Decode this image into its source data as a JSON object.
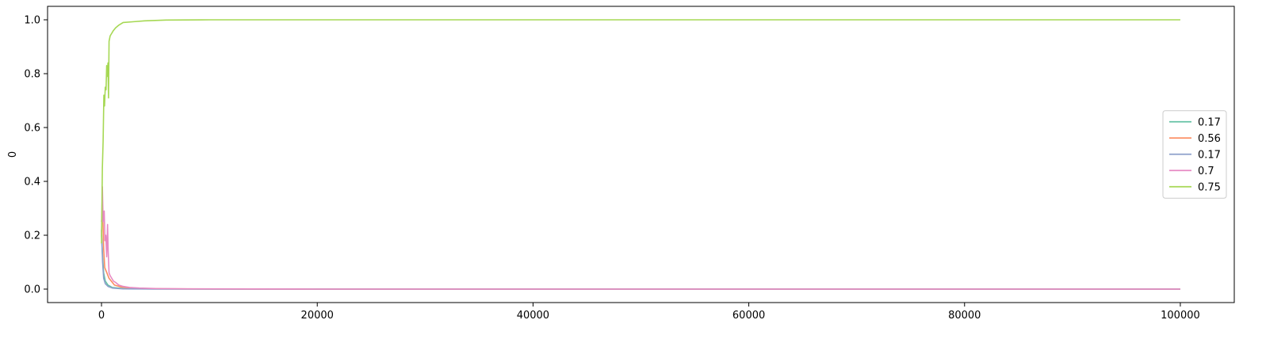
{
  "chart_data": {
    "type": "line",
    "title": "",
    "xlabel": "",
    "ylabel": "0",
    "xlim": [
      -5000,
      105000
    ],
    "ylim": [
      -0.05,
      1.05
    ],
    "x_ticks": [
      0,
      20000,
      40000,
      60000,
      80000,
      100000
    ],
    "x_tick_labels": [
      "0",
      "20000",
      "40000",
      "60000",
      "80000",
      "100000"
    ],
    "y_ticks": [
      0.0,
      0.2,
      0.4,
      0.6,
      0.8,
      1.0
    ],
    "y_tick_labels": [
      "0.0",
      "0.2",
      "0.4",
      "0.6",
      "0.8",
      "1.0"
    ],
    "grid": false,
    "legend_position": "center-right",
    "series": [
      {
        "name": "0.17",
        "color": "#66c2a5",
        "points": [
          [
            0,
            0.2
          ],
          [
            100,
            0.12
          ],
          [
            200,
            0.06
          ],
          [
            350,
            0.03
          ],
          [
            600,
            0.015
          ],
          [
            1000,
            0.006
          ],
          [
            2000,
            0.002
          ],
          [
            4000,
            0.001
          ],
          [
            10000,
            0.0
          ],
          [
            100000,
            0.0
          ]
        ]
      },
      {
        "name": "0.56",
        "color": "#fc8d62",
        "points": [
          [
            0,
            0.25
          ],
          [
            100,
            0.3
          ],
          [
            200,
            0.15
          ],
          [
            300,
            0.08
          ],
          [
            500,
            0.06
          ],
          [
            700,
            0.04
          ],
          [
            900,
            0.03
          ],
          [
            1200,
            0.015
          ],
          [
            1800,
            0.008
          ],
          [
            3000,
            0.003
          ],
          [
            6000,
            0.001
          ],
          [
            15000,
            0.0
          ],
          [
            100000,
            0.0
          ]
        ]
      },
      {
        "name": "0.17",
        "color": "#8da0cb",
        "points": [
          [
            0,
            0.22
          ],
          [
            100,
            0.1
          ],
          [
            200,
            0.04
          ],
          [
            350,
            0.02
          ],
          [
            600,
            0.01
          ],
          [
            1000,
            0.004
          ],
          [
            2000,
            0.001
          ],
          [
            5000,
            0.0
          ],
          [
            100000,
            0.0
          ]
        ]
      },
      {
        "name": "0.7",
        "color": "#e78ac3",
        "points": [
          [
            0,
            0.2
          ],
          [
            80,
            0.38
          ],
          [
            150,
            0.25
          ],
          [
            250,
            0.29
          ],
          [
            320,
            0.18
          ],
          [
            400,
            0.2
          ],
          [
            480,
            0.12
          ],
          [
            560,
            0.24
          ],
          [
            620,
            0.14
          ],
          [
            700,
            0.06
          ],
          [
            800,
            0.05
          ],
          [
            950,
            0.04
          ],
          [
            1100,
            0.03
          ],
          [
            1300,
            0.025
          ],
          [
            1600,
            0.015
          ],
          [
            2000,
            0.01
          ],
          [
            2600,
            0.006
          ],
          [
            3500,
            0.004
          ],
          [
            5000,
            0.002
          ],
          [
            8000,
            0.001
          ],
          [
            20000,
            0.0
          ],
          [
            100000,
            0.0
          ]
        ]
      },
      {
        "name": "0.75",
        "color": "#a6d854",
        "points": [
          [
            0,
            0.17
          ],
          [
            80,
            0.45
          ],
          [
            150,
            0.55
          ],
          [
            220,
            0.72
          ],
          [
            280,
            0.68
          ],
          [
            350,
            0.75
          ],
          [
            420,
            0.74
          ],
          [
            480,
            0.83
          ],
          [
            530,
            0.79
          ],
          [
            600,
            0.84
          ],
          [
            650,
            0.71
          ],
          [
            700,
            0.92
          ],
          [
            800,
            0.94
          ],
          [
            950,
            0.95
          ],
          [
            1100,
            0.96
          ],
          [
            1300,
            0.97
          ],
          [
            1600,
            0.98
          ],
          [
            2000,
            0.99
          ],
          [
            3000,
            0.993
          ],
          [
            4000,
            0.996
          ],
          [
            6000,
            0.999
          ],
          [
            10000,
            1.0
          ],
          [
            100000,
            1.0
          ]
        ]
      }
    ]
  }
}
